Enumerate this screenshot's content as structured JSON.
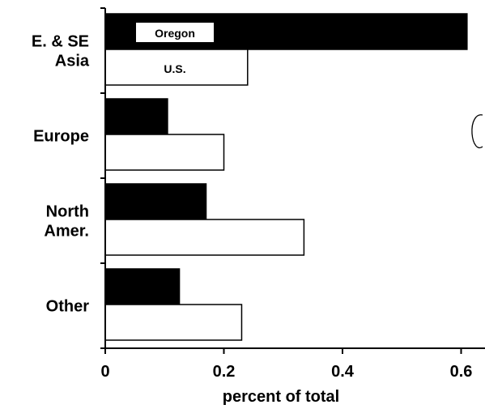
{
  "chart_data": {
    "type": "bar",
    "orientation": "horizontal",
    "categories": [
      [
        "E. & SE",
        "Asia"
      ],
      [
        "Europe"
      ],
      [
        "North",
        "Amer."
      ],
      [
        "Other"
      ]
    ],
    "series": [
      {
        "name": "Oregon",
        "values": [
          0.61,
          0.105,
          0.17,
          0.125
        ],
        "fill": "#000000"
      },
      {
        "name": "U.S.",
        "values": [
          0.24,
          0.2,
          0.335,
          0.23
        ],
        "fill": "#ffffff"
      }
    ],
    "xlabel": "percent of total",
    "ylabel": "",
    "xlim": [
      0,
      0.64
    ],
    "xticks": [
      "0",
      "0.2",
      "0.4",
      "0.6"
    ],
    "xtick_values": [
      0,
      0.2,
      0.4,
      0.6
    ],
    "grid": false,
    "legend": "series names written inside the first category's bars"
  },
  "colors": {
    "oregon": "#000000",
    "us": "#ffffff",
    "axis": "#000000"
  }
}
